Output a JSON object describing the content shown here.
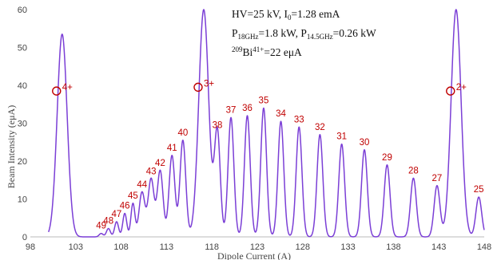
{
  "chart_data": {
    "type": "line",
    "title": "",
    "xlabel": "Dipole Current (A)",
    "ylabel": "Beam Intensity (eμA)",
    "xlim": [
      98,
      148
    ],
    "ylim": [
      0,
      60
    ],
    "xticks": [
      98,
      103,
      108,
      113,
      118,
      123,
      128,
      133,
      138,
      143,
      148
    ],
    "yticks": [
      0,
      10,
      20,
      30,
      40,
      50,
      60
    ],
    "grid": false,
    "line_color": "#7b3fd6",
    "label_color": "#c00000",
    "annotation": {
      "line1": "HV=25 kV, I",
      "line1_sub": "0",
      "line1_end": "=1.28 emA",
      "line2_a": "P",
      "line2_a_sub": "18GHz",
      "line2_b": "=1.8 kW, P",
      "line2_b_sub": "14.5GHz",
      "line2_c": "=0.26 kW",
      "line3_sup": "209",
      "line3_a": "Bi",
      "line3_sup2": "41+",
      "line3_b": "=22 eμA"
    },
    "peaks": [
      {
        "x": 101.5,
        "y": 53.5,
        "label": "4+",
        "oxygen": true,
        "marker_y": 38.5
      },
      {
        "x": 105.8,
        "y": 0.9,
        "label": "49"
      },
      {
        "x": 106.6,
        "y": 2.2,
        "label": "48"
      },
      {
        "x": 107.5,
        "y": 4.0,
        "label": "47"
      },
      {
        "x": 108.4,
        "y": 6.2,
        "label": "46"
      },
      {
        "x": 109.3,
        "y": 8.8,
        "label": "45"
      },
      {
        "x": 110.3,
        "y": 11.8,
        "label": "44"
      },
      {
        "x": 111.3,
        "y": 15.3,
        "label": "43"
      },
      {
        "x": 112.3,
        "y": 17.5,
        "label": "42"
      },
      {
        "x": 113.6,
        "y": 21.5,
        "label": "41"
      },
      {
        "x": 114.8,
        "y": 25.5,
        "label": "40"
      },
      {
        "x": 117.1,
        "y": 60,
        "label": "3+",
        "oxygen": true,
        "marker_y": 39.5
      },
      {
        "x": 118.6,
        "y": 27.5,
        "label": "38"
      },
      {
        "x": 120.1,
        "y": 31.5,
        "label": "37"
      },
      {
        "x": 121.9,
        "y": 32.0,
        "label": "36"
      },
      {
        "x": 123.7,
        "y": 34.0,
        "label": "35"
      },
      {
        "x": 125.6,
        "y": 30.5,
        "label": "34"
      },
      {
        "x": 127.6,
        "y": 29.0,
        "label": "33"
      },
      {
        "x": 129.9,
        "y": 27.0,
        "label": "32"
      },
      {
        "x": 132.3,
        "y": 24.5,
        "label": "31"
      },
      {
        "x": 134.8,
        "y": 23.0,
        "label": "30"
      },
      {
        "x": 137.3,
        "y": 19.0,
        "label": "29"
      },
      {
        "x": 140.2,
        "y": 15.5,
        "label": "28"
      },
      {
        "x": 142.8,
        "y": 13.5,
        "label": "27"
      },
      {
        "x": 144.9,
        "y": 60,
        "label": "2+",
        "oxygen": true,
        "marker_y": 38.5
      },
      {
        "x": 147.4,
        "y": 10.5,
        "label": "25"
      }
    ]
  }
}
